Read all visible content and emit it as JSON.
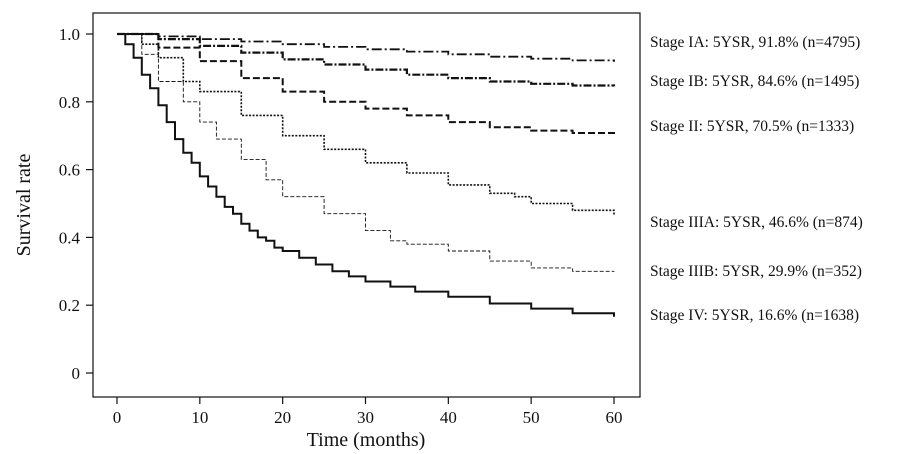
{
  "chart_data": {
    "type": "line",
    "title": "",
    "xlabel": "Time (months)",
    "ylabel": "Survival rate",
    "xlim": [
      0,
      60
    ],
    "ylim": [
      0,
      1.0
    ],
    "x_ticks": [
      0,
      10,
      20,
      30,
      40,
      50,
      60
    ],
    "y_ticks": [
      0,
      0.2,
      0.4,
      0.6,
      0.8,
      1.0
    ],
    "x_tick_labels": [
      "0",
      "10",
      "20",
      "30",
      "40",
      "50",
      "60"
    ],
    "y_tick_labels": [
      "0",
      "0.2",
      "0.4",
      "0.6",
      "0.8",
      "1.0"
    ],
    "grid": false,
    "legend_placement": "right",
    "series": [
      {
        "name": "Stage IA: 5YSR, 91.8% (n=4795)",
        "style": "dash-dot",
        "x": [
          0,
          5,
          10,
          15,
          20,
          25,
          30,
          35,
          40,
          45,
          50,
          55,
          60
        ],
        "y": [
          1.0,
          0.993,
          0.985,
          0.978,
          0.97,
          0.962,
          0.955,
          0.948,
          0.94,
          0.933,
          0.927,
          0.922,
          0.918
        ]
      },
      {
        "name": "Stage IB: 5YSR, 84.6% (n=1495)",
        "style": "dash-dot-heavy",
        "x": [
          0,
          5,
          10,
          15,
          20,
          25,
          30,
          35,
          40,
          45,
          50,
          55,
          60
        ],
        "y": [
          1.0,
          0.985,
          0.965,
          0.945,
          0.925,
          0.91,
          0.895,
          0.88,
          0.87,
          0.86,
          0.853,
          0.848,
          0.846
        ]
      },
      {
        "name": "Stage II: 5YSR, 70.5% (n=1333)",
        "style": "long-dash",
        "x": [
          0,
          5,
          10,
          15,
          20,
          25,
          30,
          35,
          40,
          45,
          50,
          55,
          60
        ],
        "y": [
          1.0,
          0.96,
          0.92,
          0.87,
          0.83,
          0.8,
          0.78,
          0.76,
          0.74,
          0.725,
          0.715,
          0.708,
          0.705
        ]
      },
      {
        "name": "Stage IIIA: 5YSR, 46.6% (n=874)",
        "style": "dotted",
        "x": [
          0,
          3,
          5,
          8,
          10,
          15,
          20,
          25,
          30,
          35,
          40,
          45,
          48,
          50,
          55,
          60
        ],
        "y": [
          1.0,
          0.97,
          0.93,
          0.86,
          0.83,
          0.76,
          0.7,
          0.66,
          0.62,
          0.59,
          0.555,
          0.53,
          0.52,
          0.5,
          0.48,
          0.466
        ]
      },
      {
        "name": "Stage IIIB: 5YSR, 29.9% (n=352)",
        "style": "thin-dash",
        "x": [
          0,
          3,
          5,
          8,
          10,
          12,
          15,
          18,
          20,
          25,
          30,
          33,
          35,
          40,
          45,
          50,
          55,
          60
        ],
        "y": [
          1.0,
          0.94,
          0.86,
          0.8,
          0.74,
          0.69,
          0.63,
          0.57,
          0.52,
          0.47,
          0.42,
          0.39,
          0.38,
          0.36,
          0.33,
          0.31,
          0.3,
          0.299
        ]
      },
      {
        "name": "Stage IV: 5YSR, 16.6% (n=1638)",
        "style": "solid",
        "x": [
          0,
          1,
          2,
          3,
          4,
          5,
          6,
          7,
          8,
          9,
          10,
          11,
          12,
          13,
          14,
          15,
          16,
          17,
          18,
          19,
          20,
          22,
          24,
          26,
          28,
          30,
          33,
          36,
          40,
          45,
          50,
          55,
          60
        ],
        "y": [
          1.0,
          0.97,
          0.93,
          0.88,
          0.84,
          0.79,
          0.74,
          0.69,
          0.65,
          0.62,
          0.58,
          0.55,
          0.52,
          0.49,
          0.47,
          0.44,
          0.42,
          0.4,
          0.39,
          0.37,
          0.36,
          0.34,
          0.32,
          0.3,
          0.285,
          0.27,
          0.255,
          0.24,
          0.225,
          0.205,
          0.19,
          0.176,
          0.166
        ]
      }
    ]
  }
}
